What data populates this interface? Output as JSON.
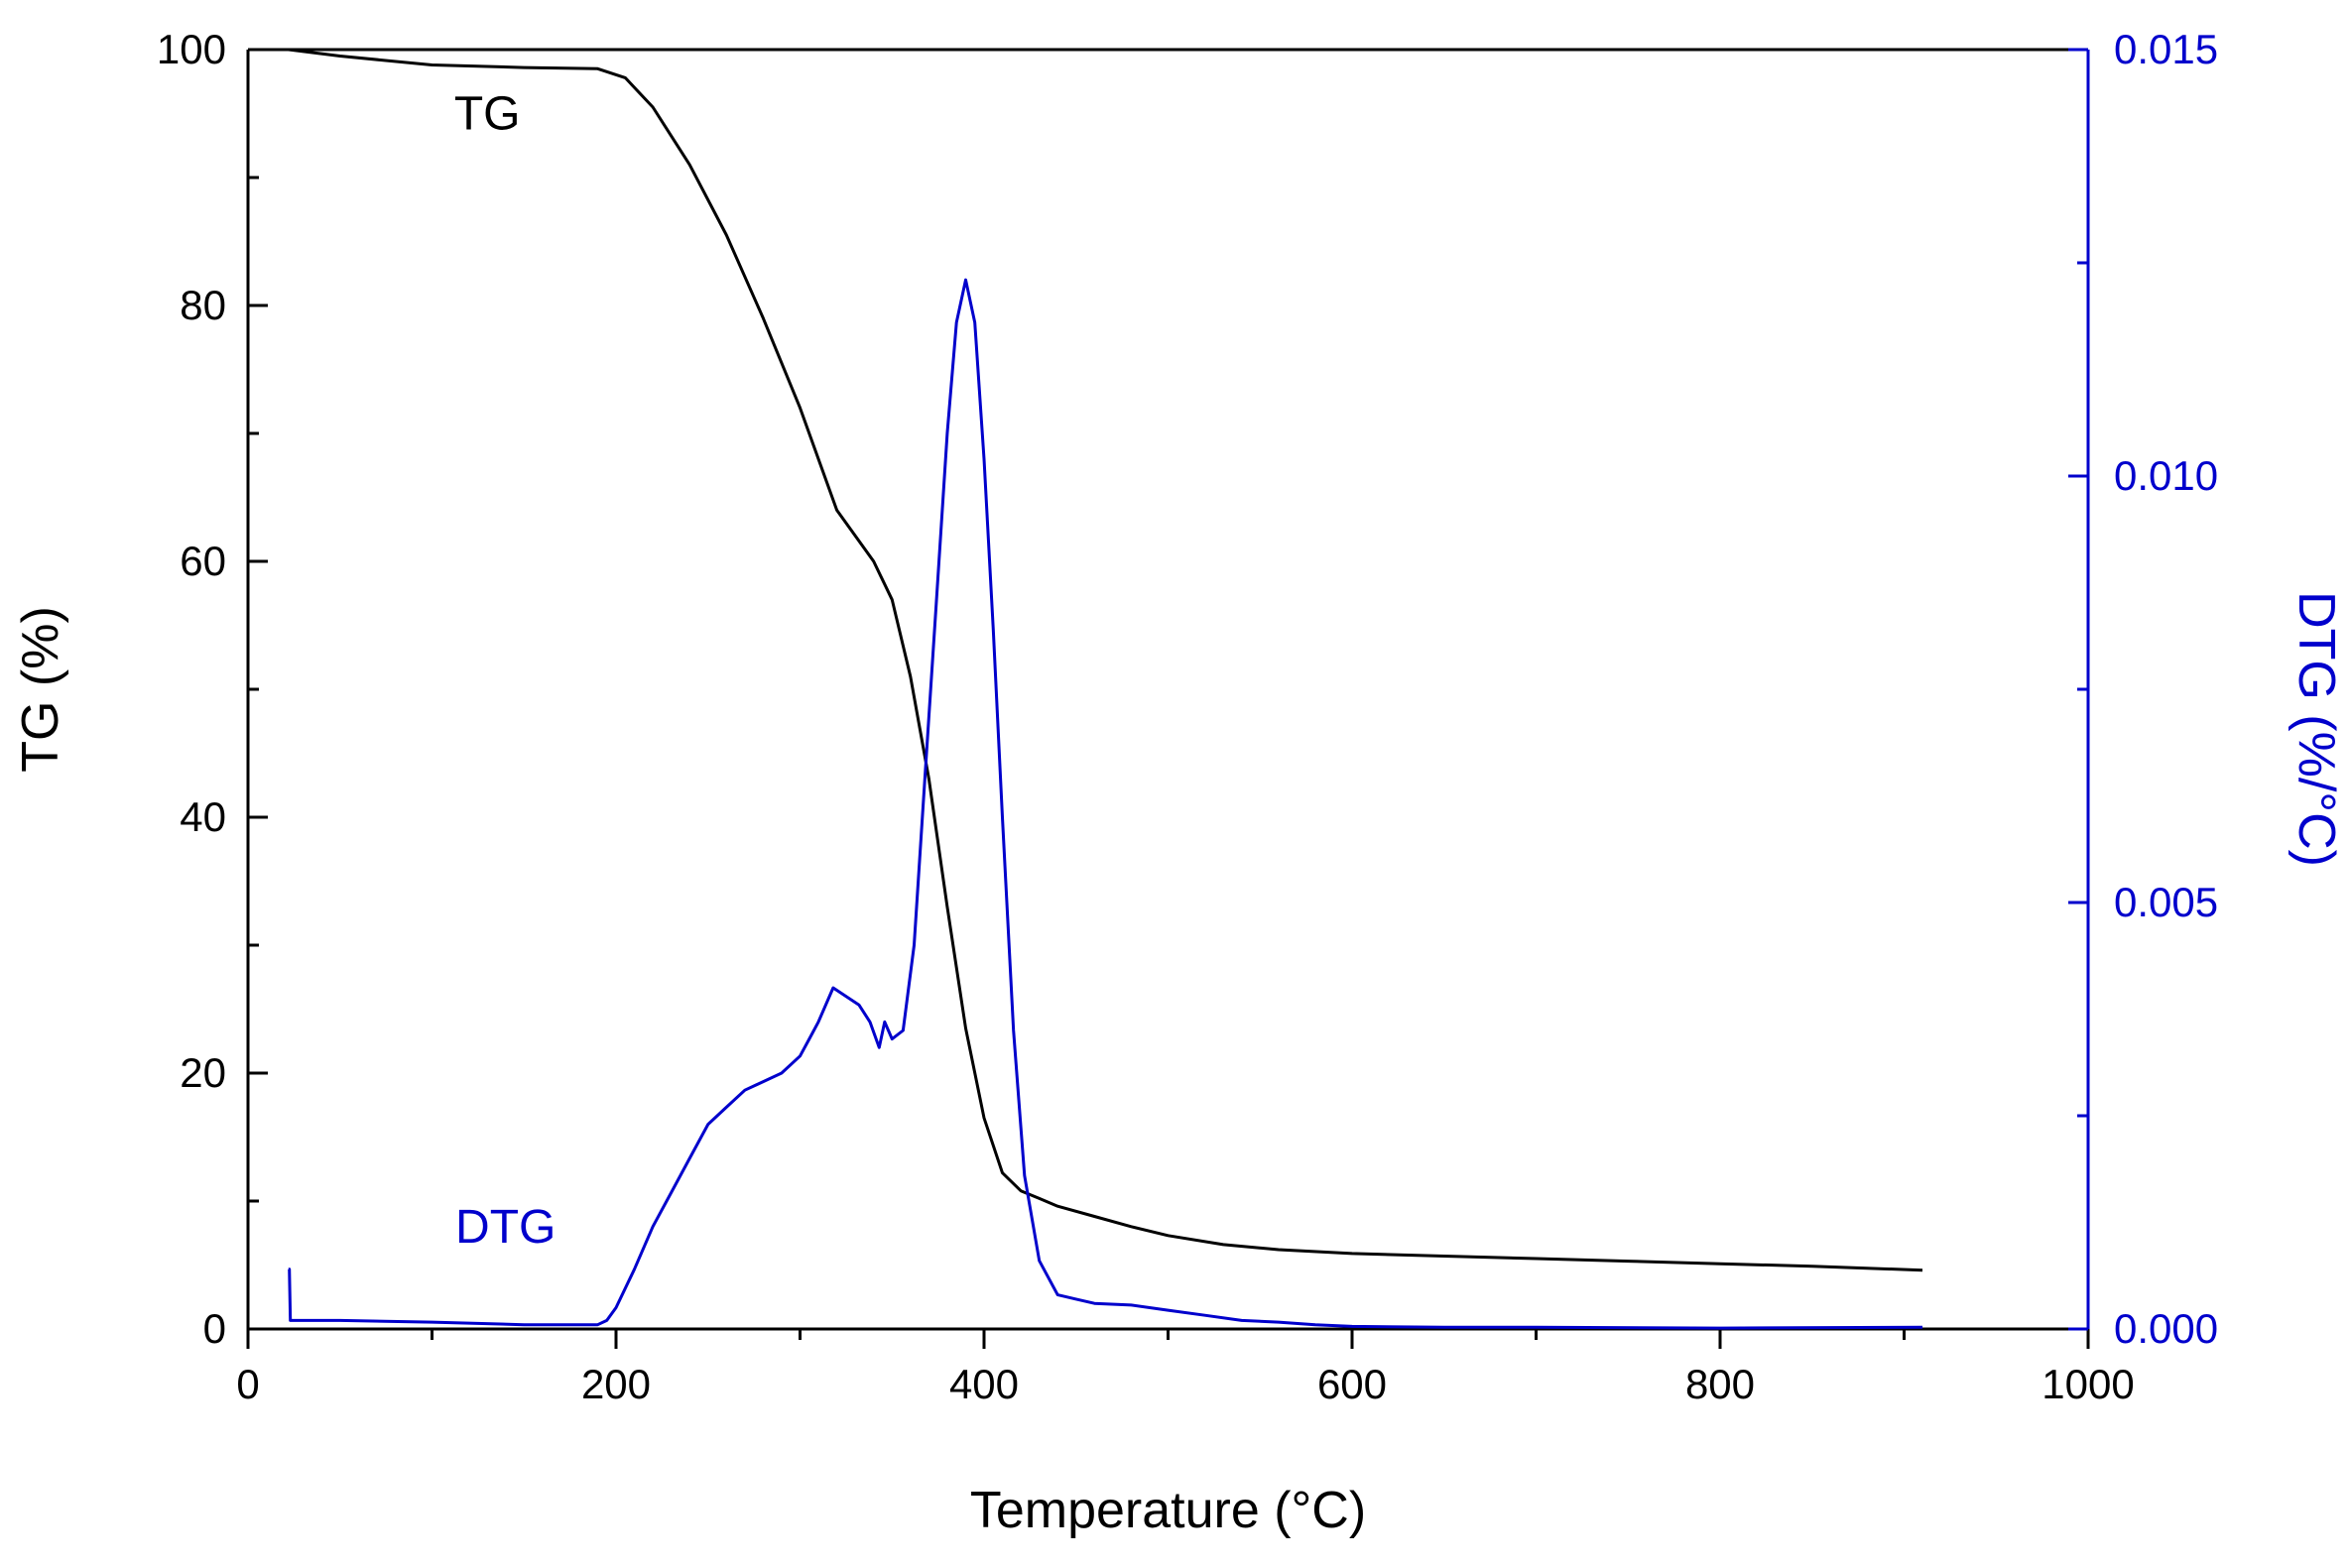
{
  "chart_data": {
    "type": "line",
    "title": "",
    "xlabel": "Temperature",
    "xlabel_unit": "(°C)",
    "ylabel_left": "TG (%)",
    "ylabel_right_main": "DTG (%/",
    "ylabel_right_unit": "°C)",
    "xlim": [
      0,
      1000
    ],
    "ylim_left": [
      0,
      100
    ],
    "ylim_right": [
      0,
      0.015
    ],
    "x_ticks": [
      "0",
      "200",
      "400",
      "600",
      "800",
      "1000"
    ],
    "y_left_ticks": [
      "0",
      "20",
      "40",
      "60",
      "80",
      "100"
    ],
    "y_right_ticks": [
      "0.000",
      "0.005",
      "0.010",
      "0.015"
    ],
    "colors": {
      "tg": "#000000",
      "dtg": "#0000cc",
      "axis_right": "#0000cc"
    },
    "series": [
      {
        "name": "TG",
        "axis": "left",
        "x": [
          22,
          50,
          100,
          150,
          190,
          205,
          220,
          240,
          260,
          280,
          300,
          320,
          340,
          350,
          360,
          370,
          380,
          390,
          400,
          410,
          420,
          430,
          440,
          460,
          480,
          500,
          530,
          560,
          600,
          650,
          700,
          750,
          800,
          850,
          910
        ],
        "values": [
          100,
          99.5,
          98.8,
          98.6,
          98.5,
          97.8,
          95.5,
          91,
          85.5,
          79,
          72,
          64,
          60,
          57,
          51,
          43,
          33,
          23.5,
          16.5,
          12.2,
          10.8,
          10.2,
          9.6,
          8.8,
          8.0,
          7.3,
          6.6,
          6.2,
          5.9,
          5.7,
          5.5,
          5.3,
          5.1,
          4.9,
          4.6
        ]
      },
      {
        "name": "DTG",
        "axis": "right",
        "x": [
          22,
          22.5,
          23,
          50,
          100,
          150,
          190,
          195,
          200,
          210,
          220,
          230,
          240,
          250,
          260,
          270,
          280,
          290,
          300,
          305,
          310,
          318,
          325,
          332,
          338,
          343,
          346,
          350,
          356,
          362,
          368,
          374,
          380,
          385,
          390,
          395,
          400,
          405,
          410,
          416,
          422,
          430,
          440,
          450,
          460,
          480,
          500,
          520,
          540,
          560,
          580,
          600,
          650,
          700,
          800,
          910
        ],
        "values": [
          0.0007,
          0.0007,
          0.0001,
          0.0001,
          8e-05,
          5e-05,
          5e-05,
          0.0001,
          0.00025,
          0.0007,
          0.0012,
          0.0016,
          0.002,
          0.0024,
          0.0026,
          0.0028,
          0.0029,
          0.003,
          0.0032,
          0.0034,
          0.0036,
          0.004,
          0.0039,
          0.0038,
          0.0036,
          0.0033,
          0.0036,
          0.0034,
          0.0035,
          0.0045,
          0.0065,
          0.0085,
          0.0105,
          0.0118,
          0.0123,
          0.0118,
          0.0102,
          0.0082,
          0.006,
          0.0035,
          0.0018,
          0.0008,
          0.0004,
          0.00035,
          0.0003,
          0.00028,
          0.00022,
          0.00016,
          0.0001,
          8e-05,
          5e-05,
          3e-05,
          2e-05,
          2e-05,
          1e-05,
          2e-05
        ]
      }
    ],
    "annotations": [
      {
        "text": "TG",
        "x": 130,
        "y": 95,
        "color": "#000000"
      },
      {
        "text": "DTG",
        "x": 140,
        "y": 8,
        "color": "#0000cc"
      }
    ]
  }
}
